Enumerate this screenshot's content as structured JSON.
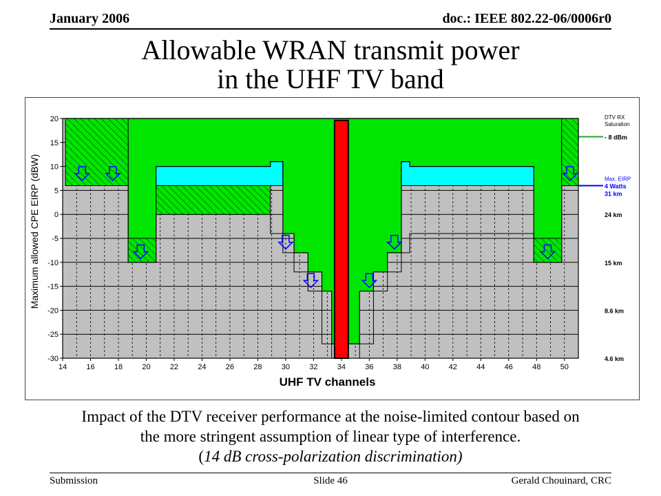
{
  "header": {
    "date": "January 2006",
    "doc": "doc.: IEEE 802.22-06/0006r0"
  },
  "title_line1": "Allowable WRAN transmit power",
  "title_line2": "in the UHF TV band",
  "caption": {
    "line1": "Impact of the DTV receiver performance at the noise-limited contour based on",
    "line2": "the more stringent assumption of linear type of interference.",
    "note_open": "(",
    "note": "14 dB cross-polarization discrimination)"
  },
  "footer": {
    "left": "Submission",
    "center": "Slide 46",
    "right": "Gerald Chouinard, CRC"
  },
  "colors": {
    "green": "#00e600",
    "cyan": "#00ffff",
    "gray": "#c0c0c0",
    "red": "#ff0000",
    "blue": "#0000ff"
  },
  "chart_data": {
    "type": "area",
    "xlabel": "UHF TV channels",
    "ylabel": "Maximum allowed CPE EIRP (dBW)",
    "xlim": [
      14,
      51
    ],
    "ylim": [
      -30,
      20
    ],
    "xticks": [
      14,
      16,
      18,
      20,
      22,
      24,
      26,
      28,
      30,
      32,
      34,
      36,
      38,
      40,
      42,
      44,
      46,
      48,
      50
    ],
    "yticks": [
      20,
      15,
      10,
      5,
      0,
      -5,
      -10,
      -15,
      -20,
      -25,
      -30
    ],
    "dtv_channel": 34,
    "dtv_rx_saturation_level": 20,
    "max_eirp_level": 6,
    "allowed_eirp_profile": {
      "x": [
        14.2,
        18.7,
        18.7,
        20.7,
        20.7,
        28.9,
        28.9,
        29.8,
        29.8,
        30.6,
        30.6,
        31.6,
        31.6,
        32.6,
        32.6,
        33.3,
        33.3,
        35.3,
        35.3,
        36.3,
        36.3,
        37.3,
        37.3,
        38.3,
        38.3,
        38.9,
        38.9,
        47.8,
        47.8,
        49.8,
        49.8,
        51.0
      ],
      "y": [
        20,
        20,
        -10,
        -10,
        6,
        6,
        -4,
        -4,
        -8,
        -8,
        -12,
        -12,
        -16,
        -16,
        -27,
        -27,
        -30,
        -30,
        -27,
        -27,
        -16,
        -16,
        -12,
        -12,
        -8,
        -8,
        -4,
        -4,
        -10,
        -10,
        20,
        20
      ]
    },
    "hatched_reduction_profile": {
      "x": [
        14.2,
        18.7,
        18.7,
        20.7,
        20.7,
        28.9,
        28.9,
        29.8,
        29.8,
        30.6,
        30.6,
        31.6,
        31.6,
        32.6,
        32.6,
        33.3,
        33.3,
        35.3,
        35.3,
        36.3,
        36.3,
        37.3,
        37.3,
        38.3,
        38.3,
        38.9,
        38.9,
        47.8,
        47.8,
        49.8,
        49.8,
        51.0
      ],
      "y": [
        6,
        6,
        -5,
        -5,
        0,
        0,
        -4,
        -4,
        -8,
        -8,
        -12,
        -12,
        -16,
        -16,
        -27,
        -27,
        -30,
        -30,
        -27,
        -27,
        -16,
        -16,
        -12,
        -12,
        -8,
        -8,
        -4,
        -4,
        -5,
        -5,
        6,
        6
      ]
    },
    "cyan_profile": {
      "x": [
        14.2,
        18.7,
        18.7,
        20.7,
        20.7,
        28.9,
        28.9,
        29.8,
        29.8,
        38.3,
        38.3,
        38.9,
        38.9,
        47.8,
        47.8,
        49.8,
        49.8,
        51.0
      ],
      "y": [
        15.7,
        15.7,
        15.7,
        15.7,
        10,
        10,
        11,
        11,
        6,
        6,
        11,
        11,
        10,
        10,
        15.7,
        15.7,
        15.7,
        15.7
      ]
    },
    "green_profile": {
      "x": [
        14.2,
        18.7,
        18.7,
        20.7,
        20.7,
        28.9,
        28.9,
        29.8,
        29.8,
        30.6,
        30.6,
        31.6,
        31.6,
        32.6,
        32.6,
        33.3,
        33.3,
        35.3,
        35.3,
        36.3,
        36.3,
        37.3,
        37.3,
        38.3,
        38.3,
        38.9,
        38.9,
        47.8,
        47.8,
        49.8,
        49.8,
        51.0
      ],
      "top": [
        20,
        20,
        20,
        20,
        20,
        20,
        20,
        20,
        20,
        20,
        20,
        20,
        20,
        20,
        20,
        20,
        20,
        20,
        20,
        20,
        20,
        20,
        20,
        20,
        20,
        20,
        20,
        20,
        20,
        20,
        20,
        20
      ],
      "bottom": [
        15.7,
        15.7,
        -10,
        -10,
        10,
        10,
        11,
        11,
        -4,
        -4,
        -8,
        -8,
        -12,
        -12,
        -16,
        -16,
        -27,
        -27,
        -16,
        -16,
        -12,
        -12,
        -8,
        -8,
        11,
        11,
        10,
        10,
        -10,
        -10,
        15.7,
        15.7
      ]
    },
    "down_arrows": [
      {
        "x": 15.4,
        "y": 8.5
      },
      {
        "x": 17.6,
        "y": 8.5
      },
      {
        "x": 19.6,
        "y": -7.8
      },
      {
        "x": 30.0,
        "y": -5.8
      },
      {
        "x": 31.8,
        "y": -13.8
      },
      {
        "x": 36.0,
        "y": -13.8
      },
      {
        "x": 37.8,
        "y": -5.8
      },
      {
        "x": 48.8,
        "y": -7.8
      },
      {
        "x": 50.4,
        "y": 8.5
      }
    ],
    "right_annotations": [
      {
        "y": 20,
        "lines": [
          "DTV RX",
          "Saturation"
        ],
        "size": "small"
      },
      {
        "y": 16.2,
        "lines": [
          "- 8 dBm"
        ],
        "size": "normal"
      },
      {
        "y": 7.3,
        "lines": [
          "Max. EIRP"
        ],
        "size": "small",
        "color": "blue"
      },
      {
        "y": 6,
        "lines": [
          "4 Watts",
          "31 km"
        ],
        "size": "normal",
        "color": "blue"
      },
      {
        "y": 0,
        "lines": [
          "24 km"
        ],
        "size": "normal"
      },
      {
        "y": -10,
        "lines": [
          "15 km"
        ],
        "size": "normal"
      },
      {
        "y": -20,
        "lines": [
          "8.6 km"
        ],
        "size": "normal"
      },
      {
        "y": -30,
        "lines": [
          "4.6 km"
        ],
        "size": "normal"
      }
    ]
  }
}
